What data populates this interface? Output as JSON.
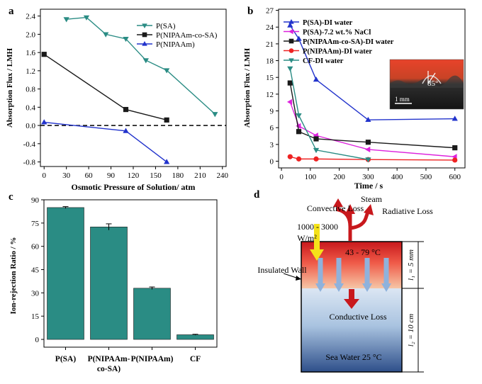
{
  "panels": {
    "a": "a",
    "b": "b",
    "c": "c",
    "d": "d"
  },
  "chart_data": [
    {
      "id": "a",
      "type": "line",
      "xlabel": "Osmotic Pressure of Solution/ atm",
      "ylabel": "Absorption Flux / LMH",
      "xlim": [
        -5,
        245
      ],
      "ylim": [
        -0.9,
        2.55
      ],
      "xticks": [
        0,
        30,
        60,
        90,
        120,
        150,
        180,
        210,
        240
      ],
      "yticks": [
        -0.8,
        -0.4,
        0.0,
        0.4,
        0.8,
        1.2,
        1.6,
        2.0,
        2.4
      ],
      "ytick_labels": [
        "-0.8",
        "-0.4",
        "0.0",
        "0.4",
        "0.8",
        "1.2",
        "1.6",
        "2.0",
        "2.4"
      ],
      "reference_line": {
        "y": 0,
        "style": "dashed"
      },
      "legend_position": "top-right",
      "series": [
        {
          "name": "P(SA)",
          "color": "#2a8c84",
          "marker": "triangle-down",
          "x": [
            30,
            57,
            83,
            110,
            137,
            165,
            230
          ],
          "y": [
            2.33,
            2.37,
            2.0,
            1.9,
            1.43,
            1.21,
            0.25
          ]
        },
        {
          "name": "P(NIPAAm-co-SA)",
          "color": "#1a1a1a",
          "marker": "square",
          "x": [
            0,
            110,
            165
          ],
          "y": [
            1.56,
            0.35,
            0.12
          ]
        },
        {
          "name": "P(NIPAAm)",
          "color": "#2233cc",
          "marker": "triangle-up",
          "x": [
            0,
            110,
            165
          ],
          "y": [
            0.07,
            -0.12,
            -0.8
          ]
        }
      ]
    },
    {
      "id": "b",
      "type": "line",
      "xlabel": "Time / s",
      "ylabel": "Absorption Flux / LMH",
      "xlim": [
        -10,
        635
      ],
      "ylim": [
        -1.2,
        27.2
      ],
      "xticks": [
        0,
        100,
        200,
        300,
        400,
        500,
        600
      ],
      "yticks": [
        0,
        3,
        6,
        9,
        12,
        15,
        18,
        21,
        24,
        27
      ],
      "legend_position": "top-right",
      "inset": {
        "angle_label": "85°",
        "scale_label": "1 mm"
      },
      "series": [
        {
          "name": "P(SA)-DI water",
          "color": "#2233cc",
          "marker": "triangle-up",
          "x": [
            30,
            60,
            120,
            300,
            600
          ],
          "y": [
            24.3,
            21.9,
            14.6,
            7.4,
            7.6
          ]
        },
        {
          "name": "P(SA)-7.2 wt.% NaCl",
          "color": "#dd22dd",
          "marker": "triangle-left",
          "x": [
            30,
            60,
            120,
            300,
            600
          ],
          "y": [
            10.6,
            6.3,
            4.6,
            2.1,
            0.8
          ]
        },
        {
          "name": "P(NIPAAm-co-SA)-DI water",
          "color": "#1a1a1a",
          "marker": "square",
          "x": [
            30,
            60,
            120,
            300,
            600
          ],
          "y": [
            14.0,
            5.3,
            4.0,
            3.4,
            2.4
          ]
        },
        {
          "name": "P(NIPAAm)-DI water",
          "color": "#ee2222",
          "marker": "circle",
          "x": [
            30,
            60,
            120,
            300,
            600
          ],
          "y": [
            0.8,
            0.4,
            0.4,
            0.3,
            0.2
          ]
        },
        {
          "name": "CF-DI water",
          "color": "#2a8c84",
          "marker": "triangle-down",
          "x": [
            30,
            60,
            120,
            300
          ],
          "y": [
            16.6,
            8.2,
            2.0,
            0.3
          ]
        }
      ]
    },
    {
      "id": "c",
      "type": "bar",
      "ylabel": "Ion-rejection Ratio / %",
      "categories": [
        "P(SA)",
        "P(NIPAAm-co-SA)",
        "P(NIPAAm)",
        "CF"
      ],
      "category_lines": [
        [
          "P(SA)"
        ],
        [
          "P(NIPAAm-",
          "co-SA)"
        ],
        [
          "P(NIPAAm)"
        ],
        [
          "CF"
        ]
      ],
      "values": [
        85,
        72.5,
        33,
        3
      ],
      "errors": [
        0.6,
        2.0,
        0.8,
        0.3
      ],
      "ylim": [
        -5,
        90
      ],
      "yticks": [
        0,
        15,
        30,
        45,
        60,
        75,
        90
      ],
      "color": "#2a8c84"
    }
  ],
  "diagram_d": {
    "steam": "Steam",
    "convective_loss": "Convective Loss",
    "radiative_loss": "Radiative Loss",
    "irradiance_line1": "1000 - 3000",
    "irradiance_line2": "W/m²",
    "temperature": "43 - 79 °C",
    "insulated_wall": "Insulated Wall",
    "conductive_loss": "Conductive Loss",
    "sea_water": "Sea Water 25 °C",
    "l1_label": "l₁ = 5 mm",
    "l2_label": "l₂ = 10 cm"
  }
}
